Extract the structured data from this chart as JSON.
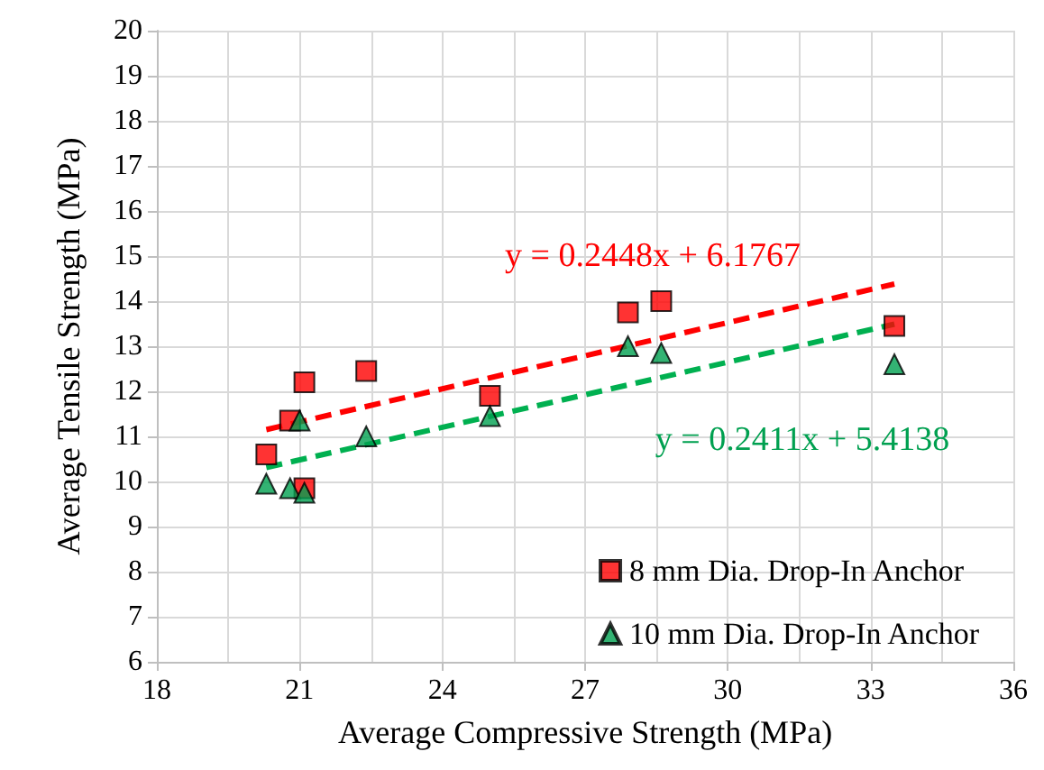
{
  "chart_data": {
    "type": "scatter",
    "xlabel": "Average Compressive Strength (MPa)",
    "ylabel": "Average Tensile Strength (MPa)",
    "xlim": [
      18,
      36
    ],
    "xticks": [
      18,
      21,
      24,
      27,
      30,
      33,
      36
    ],
    "ylim": [
      6,
      20
    ],
    "yticks": [
      6,
      7,
      8,
      9,
      10,
      11,
      12,
      13,
      14,
      15,
      16,
      17,
      18,
      19,
      20
    ],
    "grid": true,
    "legend": "bottom right",
    "series": [
      {
        "name": "8 mm Dia. Drop-In Anchor",
        "color": "#ff0000",
        "marker": "square",
        "x": [
          20.3,
          20.8,
          21.1,
          22.4,
          21.1,
          25.0,
          27.9,
          28.6,
          33.5
        ],
        "values": [
          10.6,
          11.35,
          12.2,
          12.45,
          9.85,
          11.9,
          13.75,
          14.0,
          13.45
        ]
      },
      {
        "name": "10 mm Dia. Drop-In Anchor",
        "color": "#00a050",
        "marker": "triangle",
        "x": [
          20.3,
          20.8,
          21.1,
          21.0,
          22.4,
          25.0,
          27.9,
          28.6,
          33.5
        ],
        "values": [
          9.95,
          9.85,
          9.75,
          11.35,
          11.0,
          11.45,
          13.0,
          12.85,
          12.6
        ]
      },
      {
        "type": "line",
        "color": "#ff0000",
        "marker": "none",
        "line_style": "dashed",
        "x": [
          20.3,
          33.5
        ],
        "values": [
          11.15,
          14.38
        ]
      },
      {
        "type": "line",
        "color": "#00b050",
        "marker": "none",
        "line_style": "dashed",
        "x": [
          20.3,
          33.5
        ],
        "values": [
          10.31,
          13.49
        ]
      }
    ],
    "annotations": [
      "y = 0.2448x + 6.1767",
      "y = 0.2411x + 5.4138"
    ]
  }
}
